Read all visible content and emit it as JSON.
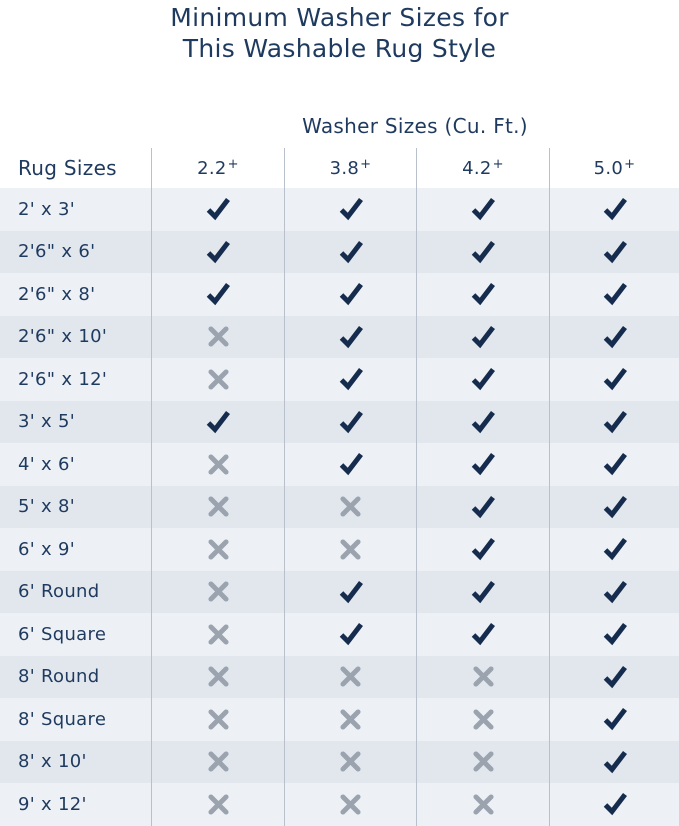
{
  "page_title": {
    "line1": "Minimum Washer Sizes for",
    "line2": "This Washable Rug Style"
  },
  "colors": {
    "navy": "#1f3a5f",
    "check_color": "#152c4e",
    "x_color": "#9ba3af",
    "row_light": "#edf1f5",
    "row_dark": "#e2e7ee",
    "divider": "#b8c0cb"
  },
  "icons": {
    "check": "check-icon",
    "x": "x-icon"
  },
  "chart_data": {
    "type": "table",
    "title": "Minimum Washer Sizes for This Washable Rug Style",
    "column_group_header": "Washer Sizes (Cu. Ft.)",
    "row_header": "Rug Sizes",
    "columns": [
      "2.2+",
      "3.8+",
      "4.2+",
      "5.0+"
    ],
    "cell_symbols": {
      "true": "checkmark",
      "false": "x-mark"
    },
    "rows": [
      {
        "label": "2' x 3'",
        "fits": [
          true,
          true,
          true,
          true
        ]
      },
      {
        "label": "2'6\" x 6'",
        "fits": [
          true,
          true,
          true,
          true
        ]
      },
      {
        "label": "2'6\" x 8'",
        "fits": [
          true,
          true,
          true,
          true
        ]
      },
      {
        "label": "2'6\" x 10'",
        "fits": [
          false,
          true,
          true,
          true
        ]
      },
      {
        "label": "2'6\" x 12'",
        "fits": [
          false,
          true,
          true,
          true
        ]
      },
      {
        "label": "3' x 5'",
        "fits": [
          true,
          true,
          true,
          true
        ]
      },
      {
        "label": "4' x 6'",
        "fits": [
          false,
          true,
          true,
          true
        ]
      },
      {
        "label": "5' x 8'",
        "fits": [
          false,
          false,
          true,
          true
        ]
      },
      {
        "label": "6' x 9'",
        "fits": [
          false,
          false,
          true,
          true
        ]
      },
      {
        "label": "6' Round",
        "fits": [
          false,
          true,
          true,
          true
        ]
      },
      {
        "label": "6' Square",
        "fits": [
          false,
          true,
          true,
          true
        ]
      },
      {
        "label": "8' Round",
        "fits": [
          false,
          false,
          false,
          true
        ]
      },
      {
        "label": "8' Square",
        "fits": [
          false,
          false,
          false,
          true
        ]
      },
      {
        "label": "8' x 10'",
        "fits": [
          false,
          false,
          false,
          true
        ]
      },
      {
        "label": "9' x 12'",
        "fits": [
          false,
          false,
          false,
          true
        ]
      }
    ]
  }
}
